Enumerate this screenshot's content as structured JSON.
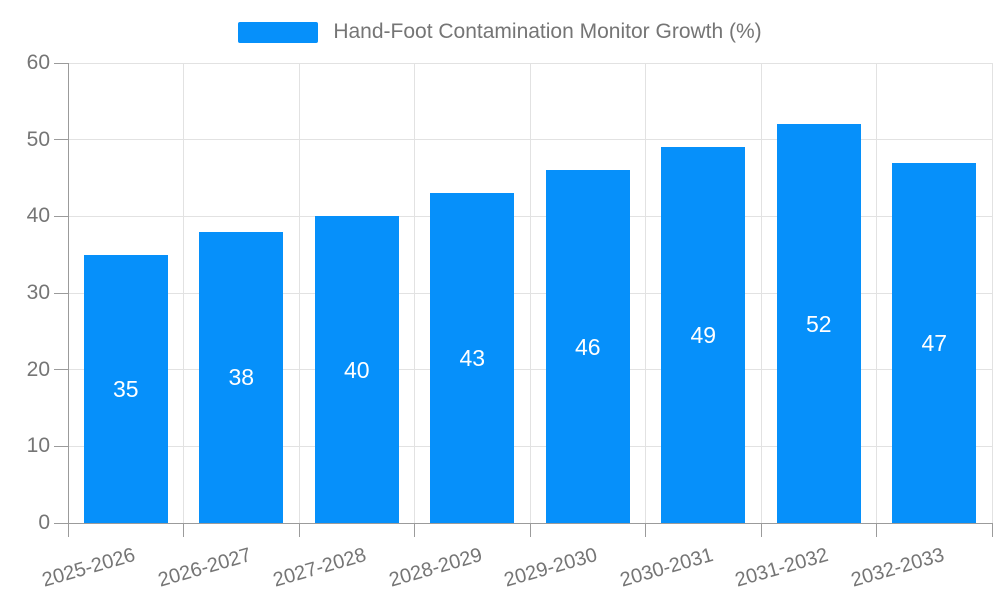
{
  "chart_data": {
    "type": "bar",
    "title": "Hand-Foot Contamination Monitor Growth (%)",
    "categories": [
      "2025-2026",
      "2026-2027",
      "2027-2028",
      "2028-2029",
      "2029-2030",
      "2030-2031",
      "2031-2032",
      "2032-2033"
    ],
    "values": [
      35,
      38,
      40,
      43,
      46,
      49,
      52,
      47
    ],
    "xlabel": "",
    "ylabel": "",
    "ylim": [
      0,
      60
    ],
    "ytick_step": 10,
    "yticks": [
      0,
      10,
      20,
      30,
      40,
      50,
      60
    ],
    "legend_entries": [
      "Hand-Foot Contamination Monitor Growth (%)"
    ],
    "legend_position": "top-center",
    "grid": true,
    "bar_label_placement": "centered inside bar",
    "x_label_rotation_deg": -16,
    "colors": {
      "bar": "#0690fa",
      "grid": "#e2e2e2",
      "axis": "#9b9b9b",
      "tick_text": "#757575",
      "bar_label_text": "#ffffff",
      "background": "#ffffff"
    }
  }
}
